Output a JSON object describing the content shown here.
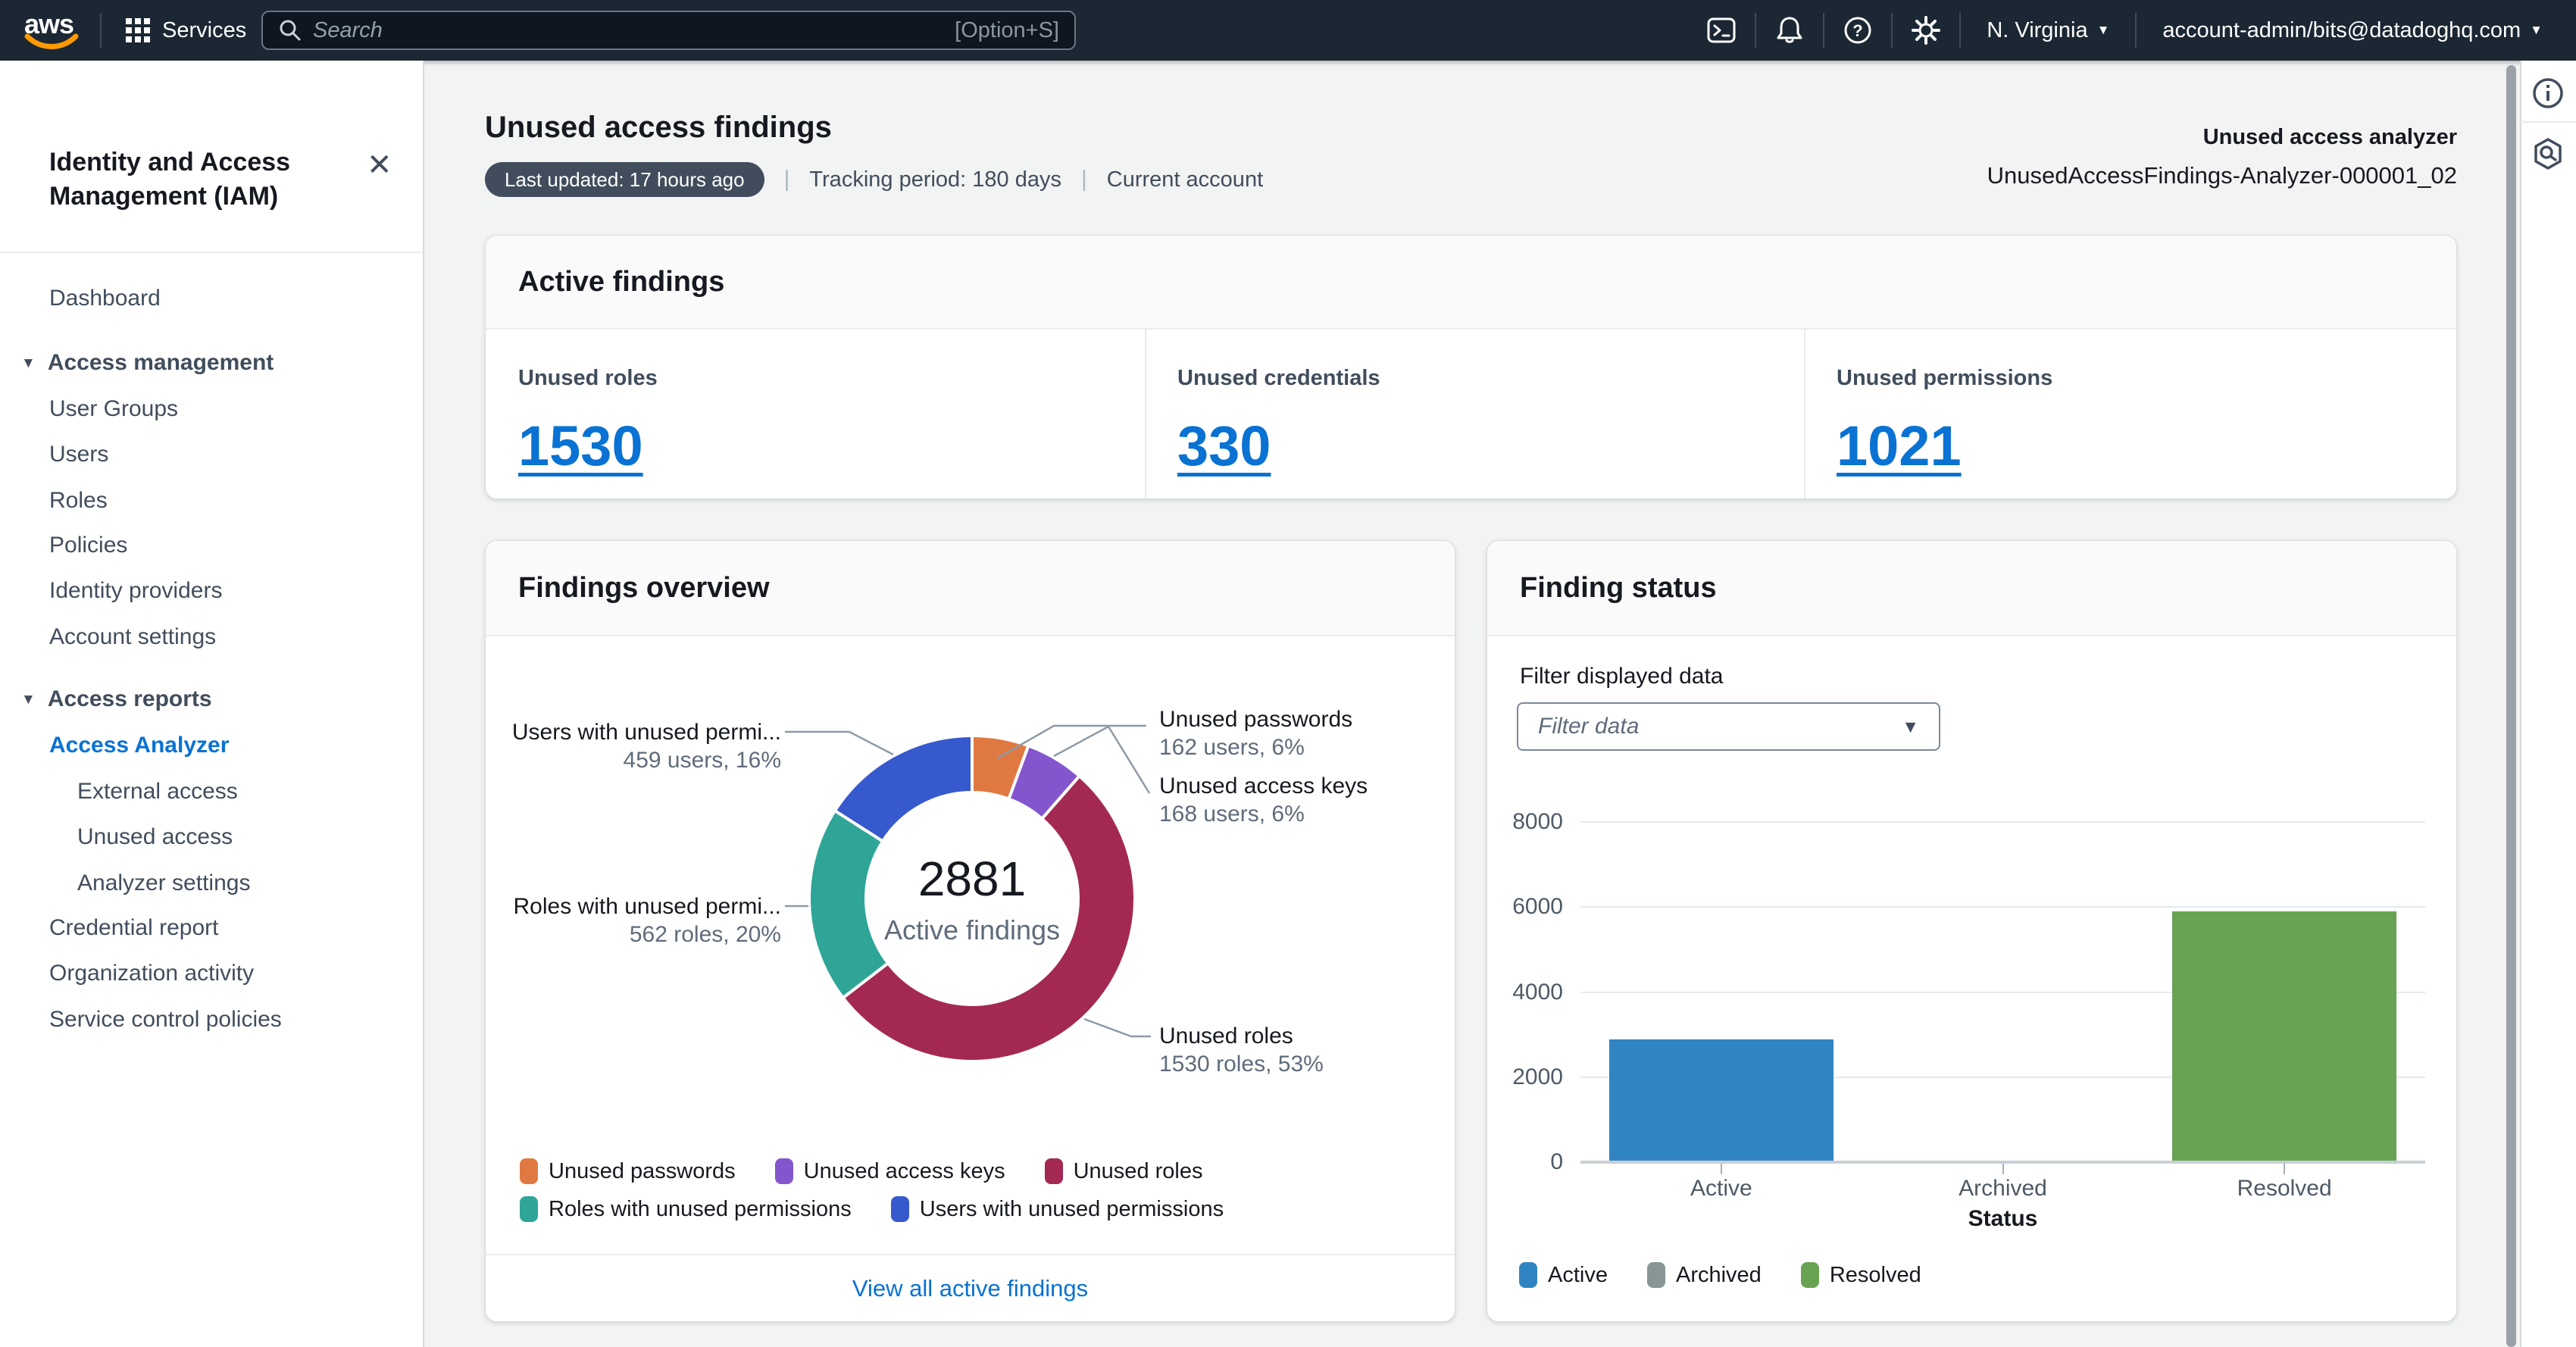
{
  "top_nav": {
    "logo_text": "aws",
    "services_label": "Services",
    "search": {
      "placeholder": "Search",
      "shortcut": "[Option+S]"
    },
    "region_label": "N. Virginia",
    "account_label": "account-admin/bits@datadoghq.com",
    "icons": [
      "services-grid-icon",
      "search-icon",
      "cloudshell-icon",
      "notifications-bell-icon",
      "help-icon",
      "settings-gear-icon"
    ]
  },
  "sidebar": {
    "title": "Identity and Access Management (IAM)",
    "items": [
      {
        "label": "Dashboard",
        "type": "link"
      },
      {
        "label": "Access management",
        "type": "section"
      },
      {
        "label": "User Groups",
        "type": "link"
      },
      {
        "label": "Users",
        "type": "link"
      },
      {
        "label": "Roles",
        "type": "link"
      },
      {
        "label": "Policies",
        "type": "link"
      },
      {
        "label": "Identity providers",
        "type": "link"
      },
      {
        "label": "Account settings",
        "type": "link"
      },
      {
        "label": "Access reports",
        "type": "section"
      },
      {
        "label": "Access Analyzer",
        "type": "link",
        "selected": true
      },
      {
        "label": "External access",
        "type": "sublink"
      },
      {
        "label": "Unused access",
        "type": "sublink"
      },
      {
        "label": "Analyzer settings",
        "type": "sublink"
      },
      {
        "label": "Credential report",
        "type": "link"
      },
      {
        "label": "Organization activity",
        "type": "link"
      },
      {
        "label": "Service control policies",
        "type": "link"
      }
    ]
  },
  "header": {
    "title": "Unused access findings",
    "badge": "Last updated: 17 hours ago",
    "meta": [
      "Tracking period: 180 days",
      "Current account"
    ],
    "analyzer_label": "Unused access analyzer",
    "analyzer_value": "UnusedAccessFindings-Analyzer-000001_02"
  },
  "active_findings": {
    "title": "Active findings",
    "metrics": [
      {
        "label": "Unused roles",
        "value": "1530"
      },
      {
        "label": "Unused credentials",
        "value": "330"
      },
      {
        "label": "Unused permissions",
        "value": "1021"
      }
    ]
  },
  "findings_overview": {
    "title": "Findings overview",
    "footer_link": "View all active findings"
  },
  "finding_status": {
    "title": "Finding status",
    "filter_label": "Filter displayed data",
    "filter_placeholder": "Filter data"
  },
  "chart_data": [
    {
      "type": "pie",
      "title": "Findings overview",
      "center_value": "2881",
      "center_label": "Active findings",
      "slices": [
        {
          "label": "Unused passwords",
          "display_label": "Unused passwords",
          "value": 162,
          "unit": "users",
          "percent": "6%",
          "annotation": "162 users, 6%",
          "color": "#E07941"
        },
        {
          "label": "Unused access keys",
          "display_label": "Unused access keys",
          "value": 168,
          "unit": "users",
          "percent": "6%",
          "annotation": "168 users, 6%",
          "color": "#8456CE"
        },
        {
          "label": "Unused roles",
          "display_label": "Unused roles",
          "value": 1530,
          "unit": "roles",
          "percent": "53%",
          "annotation": "1530 roles, 53%",
          "color": "#A32952"
        },
        {
          "label": "Roles with unused permissions",
          "display_label": "Roles with unused permi...",
          "value": 562,
          "unit": "roles",
          "percent": "20%",
          "annotation": "562 roles, 20%",
          "color": "#2EA597"
        },
        {
          "label": "Users with unused permissions",
          "display_label": "Users with unused permi...",
          "value": 459,
          "unit": "users",
          "percent": "16%",
          "annotation": "459 users, 16%",
          "color": "#3759CE"
        }
      ],
      "legend_position": "bottom-left"
    },
    {
      "type": "bar",
      "categories": [
        "Active",
        "Archived",
        "Resolved"
      ],
      "values": [
        2881,
        0,
        5900
      ],
      "colors": [
        "#3184C2",
        "#879596",
        "#67A353"
      ],
      "xlabel": "Status",
      "ylabel": "",
      "ylim": [
        0,
        8000
      ],
      "yticks": [
        0,
        2000,
        4000,
        6000,
        8000
      ],
      "legend": [
        "Active",
        "Archived",
        "Resolved"
      ],
      "grid": true,
      "legend_position": "bottom-left"
    }
  ]
}
